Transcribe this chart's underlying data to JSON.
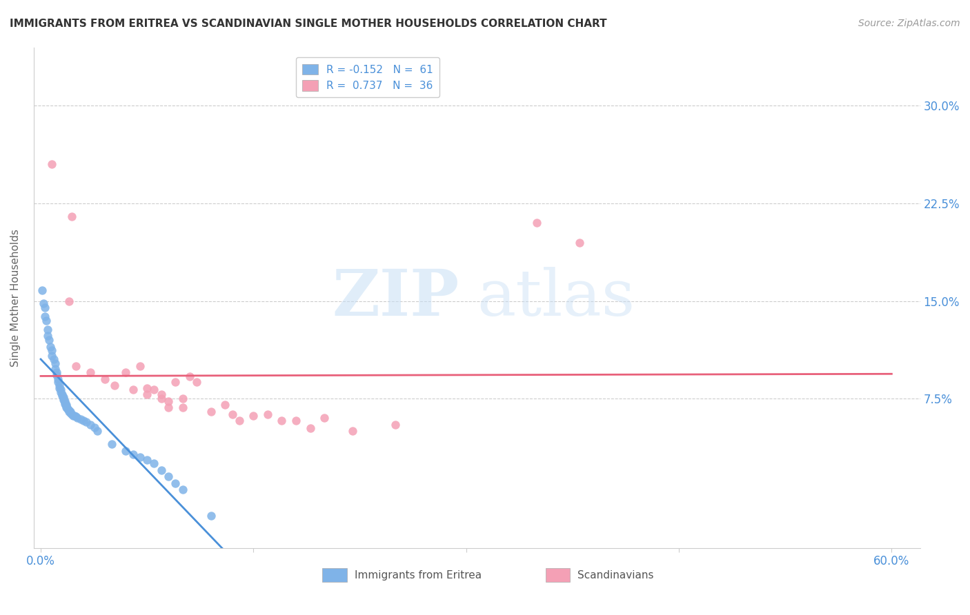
{
  "title": "IMMIGRANTS FROM ERITREA VS SCANDINAVIAN SINGLE MOTHER HOUSEHOLDS CORRELATION CHART",
  "source": "Source: ZipAtlas.com",
  "ylabel": "Single Mother Households",
  "ytick_values": [
    0.0,
    0.075,
    0.15,
    0.225,
    0.3
  ],
  "ytick_labels": [
    "",
    "7.5%",
    "15.0%",
    "22.5%",
    "30.0%"
  ],
  "xlim": [
    -0.005,
    0.62
  ],
  "ylim": [
    -0.04,
    0.345
  ],
  "blue_color": "#7fb3e8",
  "pink_color": "#f4a0b5",
  "blue_line_color": "#4a90d9",
  "pink_line_color": "#e8607a",
  "blue_points_x": [
    0.001,
    0.002,
    0.003,
    0.003,
    0.004,
    0.005,
    0.005,
    0.006,
    0.007,
    0.008,
    0.008,
    0.009,
    0.01,
    0.01,
    0.011,
    0.011,
    0.012,
    0.012,
    0.013,
    0.013,
    0.014,
    0.014,
    0.015,
    0.015,
    0.016,
    0.016,
    0.016,
    0.017,
    0.017,
    0.017,
    0.018,
    0.018,
    0.018,
    0.019,
    0.019,
    0.02,
    0.02,
    0.021,
    0.021,
    0.022,
    0.023,
    0.024,
    0.025,
    0.026,
    0.028,
    0.03,
    0.032,
    0.035,
    0.038,
    0.04,
    0.05,
    0.06,
    0.065,
    0.07,
    0.075,
    0.08,
    0.085,
    0.09,
    0.095,
    0.1,
    0.12
  ],
  "blue_points_y": [
    0.158,
    0.148,
    0.145,
    0.138,
    0.135,
    0.128,
    0.123,
    0.12,
    0.115,
    0.112,
    0.108,
    0.105,
    0.102,
    0.098,
    0.095,
    0.093,
    0.09,
    0.088,
    0.085,
    0.083,
    0.082,
    0.08,
    0.078,
    0.077,
    0.076,
    0.075,
    0.074,
    0.073,
    0.072,
    0.071,
    0.07,
    0.069,
    0.068,
    0.067,
    0.067,
    0.066,
    0.065,
    0.065,
    0.064,
    0.063,
    0.062,
    0.062,
    0.061,
    0.06,
    0.059,
    0.058,
    0.057,
    0.055,
    0.053,
    0.05,
    0.04,
    0.035,
    0.032,
    0.03,
    0.028,
    0.025,
    0.02,
    0.015,
    0.01,
    0.005,
    -0.015
  ],
  "pink_points_x": [
    0.008,
    0.022,
    0.02,
    0.025,
    0.035,
    0.045,
    0.052,
    0.06,
    0.065,
    0.07,
    0.075,
    0.075,
    0.08,
    0.085,
    0.085,
    0.09,
    0.09,
    0.095,
    0.1,
    0.1,
    0.105,
    0.11,
    0.12,
    0.13,
    0.135,
    0.14,
    0.15,
    0.16,
    0.17,
    0.18,
    0.19,
    0.2,
    0.22,
    0.25,
    0.35,
    0.38
  ],
  "pink_points_y": [
    0.255,
    0.215,
    0.15,
    0.1,
    0.095,
    0.09,
    0.085,
    0.095,
    0.082,
    0.1,
    0.078,
    0.083,
    0.082,
    0.075,
    0.078,
    0.073,
    0.068,
    0.088,
    0.075,
    0.068,
    0.092,
    0.088,
    0.065,
    0.07,
    0.063,
    0.058,
    0.062,
    0.063,
    0.058,
    0.058,
    0.052,
    0.06,
    0.05,
    0.055,
    0.21,
    0.195
  ],
  "legend_line1": "R = -0.152   N =  61",
  "legend_line2": "R =  0.737   N =  36",
  "legend_label1": "Immigrants from Eritrea",
  "legend_label2": "Scandinavians"
}
